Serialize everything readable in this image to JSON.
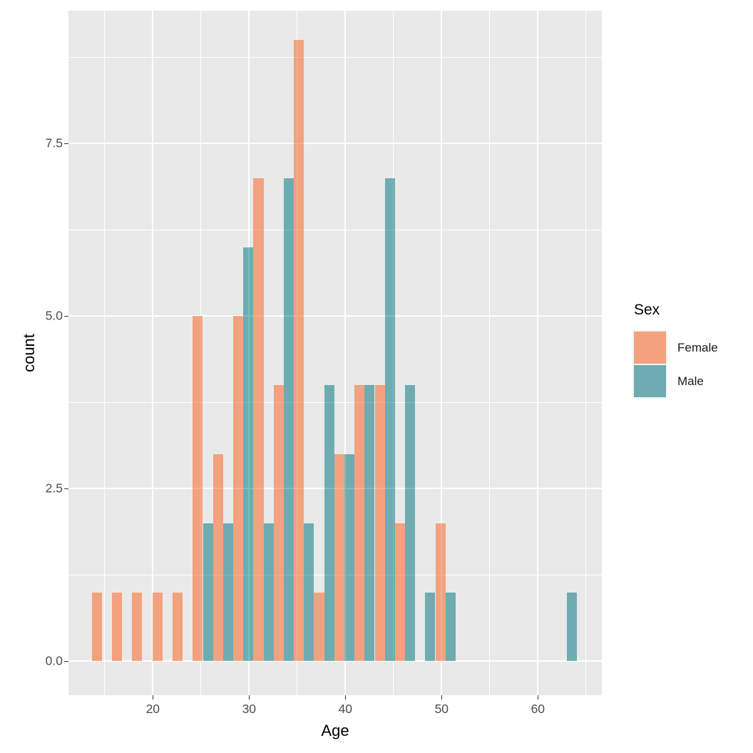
{
  "chart_data": {
    "type": "bar",
    "subtype": "dodged-histogram",
    "title": "",
    "xlabel": "Age",
    "ylabel": "count",
    "legend_title": "Sex",
    "legend_position": "right",
    "grid": "on",
    "binwidth": 2.1,
    "series": [
      {
        "name": "Female",
        "color": "#f2a27e"
      },
      {
        "name": "Male",
        "color": "#6eacb2"
      }
    ],
    "bins": [
      {
        "center": 14.7,
        "female": 1,
        "male": 0
      },
      {
        "center": 16.8,
        "female": 1,
        "male": 0
      },
      {
        "center": 18.9,
        "female": 1,
        "male": 0
      },
      {
        "center": 21.0,
        "female": 1,
        "male": 0
      },
      {
        "center": 23.1,
        "female": 1,
        "male": 0
      },
      {
        "center": 25.2,
        "female": 5,
        "male": 2
      },
      {
        "center": 27.3,
        "female": 3,
        "male": 2
      },
      {
        "center": 29.4,
        "female": 5,
        "male": 6
      },
      {
        "center": 31.5,
        "female": 7,
        "male": 2
      },
      {
        "center": 33.6,
        "female": 4,
        "male": 7
      },
      {
        "center": 35.7,
        "female": 9,
        "male": 2
      },
      {
        "center": 37.8,
        "female": 1,
        "male": 4
      },
      {
        "center": 39.9,
        "female": 3,
        "male": 3
      },
      {
        "center": 42.0,
        "female": 4,
        "male": 4
      },
      {
        "center": 44.1,
        "female": 4,
        "male": 7
      },
      {
        "center": 46.2,
        "female": 2,
        "male": 4
      },
      {
        "center": 48.3,
        "female": 0,
        "male": 1
      },
      {
        "center": 50.4,
        "female": 2,
        "male": 1
      },
      {
        "center": 63.0,
        "female": 0,
        "male": 1
      }
    ],
    "x_ticks": [
      {
        "value": 20,
        "label": "20"
      },
      {
        "value": 30,
        "label": "30"
      },
      {
        "value": 40,
        "label": "40"
      },
      {
        "value": 50,
        "label": "50"
      },
      {
        "value": 60,
        "label": "60"
      }
    ],
    "x_minor": [
      15,
      25,
      35,
      45,
      55,
      65
    ],
    "y_ticks": [
      {
        "value": 0.0,
        "label": "0.0"
      },
      {
        "value": 2.5,
        "label": "2.5"
      },
      {
        "value": 5.0,
        "label": "5.0"
      },
      {
        "value": 7.5,
        "label": "7.5"
      }
    ],
    "y_minor": [
      1.25,
      3.75,
      6.25,
      8.75
    ],
    "xlim": [
      11.2,
      66.6
    ],
    "ylim": [
      -0.5,
      9.42
    ]
  },
  "legend": {
    "title": "Sex",
    "entries": [
      {
        "label": "Female",
        "color": "#f2a27e"
      },
      {
        "label": "Male",
        "color": "#6eacb2"
      }
    ]
  },
  "colors": {
    "panel_background": "#e9e9e9",
    "gridline": "#ffffff",
    "female": "#f2a27e",
    "male": "#6eacb2",
    "tick_label": "#4d4d4d",
    "title_text": "#000000",
    "outer_background": "#ffffff"
  }
}
